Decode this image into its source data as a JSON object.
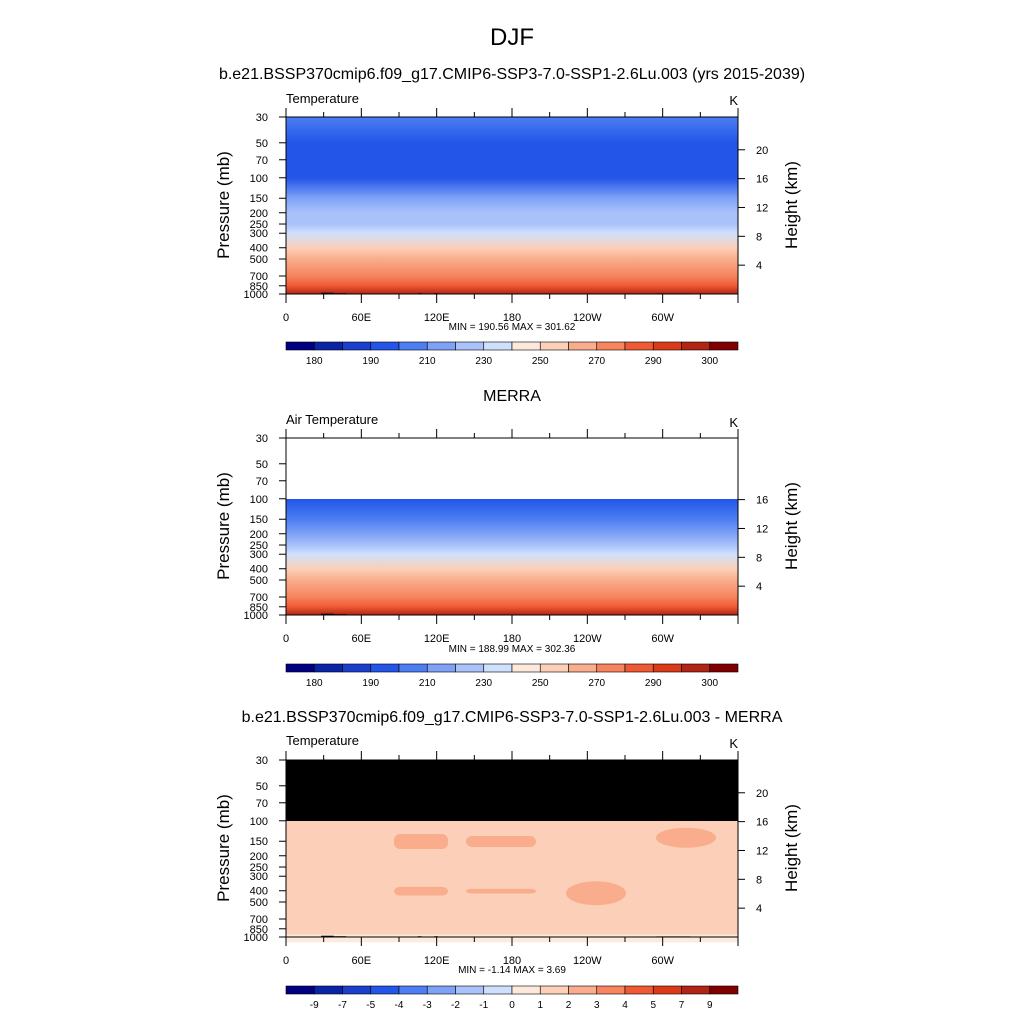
{
  "figure": {
    "title": "DJF",
    "top_subtitle": "b.e21.BSSP370cmip6.f09_g17.CMIP6-SSP3-7.0-SSP1-2.6Lu.003 (yrs 2015-2039)",
    "middle_subtitle": "MERRA",
    "bottom_subtitle": "b.e21.BSSP370cmip6.f09_g17.CMIP6-SSP3-7.0-SSP1-2.6Lu.003 - MERRA"
  },
  "colors": {
    "palette": [
      "#000080",
      "#0a24a6",
      "#1a3fcc",
      "#2255e8",
      "#4d7ef2",
      "#7fa2f7",
      "#a9c2fa",
      "#cfe0fd",
      "#fde9dc",
      "#fcd0b8",
      "#f9ad8c",
      "#f5845f",
      "#ef5a34",
      "#dc3b1a",
      "#b22414",
      "#800000"
    ],
    "land_mask": "#000000"
  },
  "chart_data": [
    {
      "type": "heatmap",
      "panel": "model",
      "variable_label": "Temperature",
      "units": "K",
      "ylabel": "Pressure (mb)",
      "ylabel_right": "Height (km)",
      "pressure_ticks": [
        "30",
        "50",
        "70",
        "100",
        "150",
        "200",
        "250",
        "300",
        "400",
        "500",
        "700",
        "850",
        "1000"
      ],
      "height_ticks": [
        "20",
        "16",
        "12",
        "8",
        "4"
      ],
      "lon_ticks": [
        "0",
        "60E",
        "120E",
        "180",
        "120W",
        "60W"
      ],
      "stats": "MIN = 190.56  MAX = 301.62",
      "colorbar_labels": [
        "180",
        "190",
        "210",
        "230",
        "250",
        "270",
        "290",
        "300"
      ],
      "profile": [
        {
          "p": 30,
          "value": 205
        },
        {
          "p": 50,
          "value": 198
        },
        {
          "p": 70,
          "value": 196
        },
        {
          "p": 100,
          "value": 197
        },
        {
          "p": 150,
          "value": 210
        },
        {
          "p": 200,
          "value": 220
        },
        {
          "p": 250,
          "value": 228
        },
        {
          "p": 300,
          "value": 236
        },
        {
          "p": 400,
          "value": 252
        },
        {
          "p": 500,
          "value": 262
        },
        {
          "p": 700,
          "value": 278
        },
        {
          "p": 850,
          "value": 288
        },
        {
          "p": 1000,
          "value": 298
        }
      ]
    },
    {
      "type": "heatmap",
      "panel": "obs",
      "variable_label": "Air Temperature",
      "units": "K",
      "ylabel": "Pressure (mb)",
      "ylabel_right": "Height (km)",
      "pressure_ticks": [
        "30",
        "50",
        "70",
        "100",
        "150",
        "200",
        "250",
        "300",
        "400",
        "500",
        "700",
        "850",
        "1000"
      ],
      "height_ticks": [
        "16",
        "12",
        "8",
        "4"
      ],
      "lon_ticks": [
        "0",
        "60E",
        "120E",
        "180",
        "120W",
        "60W"
      ],
      "stats": "MIN = 188.99  MAX = 302.36",
      "colorbar_labels": [
        "180",
        "190",
        "210",
        "230",
        "250",
        "270",
        "290",
        "300"
      ],
      "data_top_p": 100,
      "profile": [
        {
          "p": 100,
          "value": 197
        },
        {
          "p": 150,
          "value": 209
        },
        {
          "p": 200,
          "value": 219
        },
        {
          "p": 250,
          "value": 227
        },
        {
          "p": 300,
          "value": 235
        },
        {
          "p": 400,
          "value": 251
        },
        {
          "p": 500,
          "value": 261
        },
        {
          "p": 700,
          "value": 277
        },
        {
          "p": 850,
          "value": 287
        },
        {
          "p": 1000,
          "value": 298
        }
      ]
    },
    {
      "type": "heatmap",
      "panel": "difference",
      "variable_label": "Temperature",
      "units": "K",
      "ylabel": "Pressure (mb)",
      "ylabel_right": "Height (km)",
      "pressure_ticks": [
        "30",
        "50",
        "70",
        "100",
        "150",
        "200",
        "250",
        "300",
        "400",
        "500",
        "700",
        "850",
        "1000"
      ],
      "height_ticks": [
        "20",
        "16",
        "12",
        "8",
        "4"
      ],
      "lon_ticks": [
        "0",
        "60E",
        "120E",
        "180",
        "120W",
        "60W"
      ],
      "stats": "MIN =  -1.14  MAX =   3.69",
      "colorbar_labels": [
        "-9",
        "-7",
        "-5",
        "-4",
        "-3",
        "-2",
        "-1",
        "0",
        "1",
        "2",
        "3",
        "4",
        "5",
        "7",
        "9"
      ],
      "masked_above_p": 100,
      "background_value": 1.0,
      "warm_bands": [
        {
          "p_top": 130,
          "p_bottom": 175,
          "value": 2.2
        },
        {
          "p_top": 370,
          "p_bottom": 440,
          "value": 2.2
        }
      ]
    }
  ]
}
